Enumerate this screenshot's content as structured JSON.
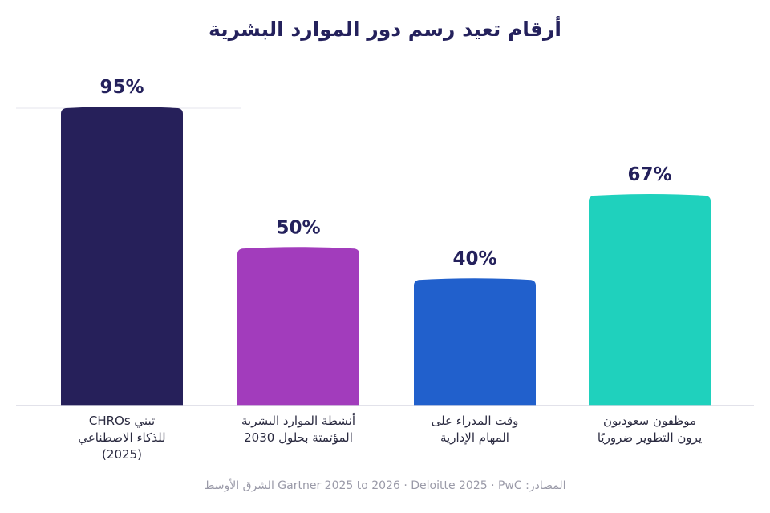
{
  "title": "أرقام تعيد رسم دور الموارد البشرية",
  "source": "المصادر: Gartner 2025 to 2026 · Deloitte 2025 · PwC الشرق الأوسط",
  "colors": {
    "title": "#24215c",
    "value_label": "#24215c",
    "category_label": "#2a2a40",
    "baseline": "#d9d9e3",
    "gridline": "#e4e4ec"
  },
  "chart_data": {
    "type": "bar",
    "title": "أرقام تعيد رسم دور الموارد البشرية",
    "xlabel": "",
    "ylabel": "",
    "ylim": [
      0,
      95
    ],
    "grid": false,
    "categories": [
      [
        "تبني CHROs",
        "للذكاء الاصطناعي",
        "(2025)"
      ],
      [
        "أنشطة الموارد البشرية",
        "المؤتمتة بحلول 2030"
      ],
      [
        "وقت المدراء على",
        "المهام الإدارية"
      ],
      [
        "موظفون سعوديون",
        "يرون التطوير ضروريًا"
      ]
    ],
    "values": [
      95,
      50,
      40,
      67
    ],
    "value_labels": [
      "95%",
      "50%",
      "40%",
      "67%"
    ],
    "bar_colors": [
      "#26205a",
      "#a23cbc",
      "#2160cc",
      "#1fd1bd"
    ]
  }
}
